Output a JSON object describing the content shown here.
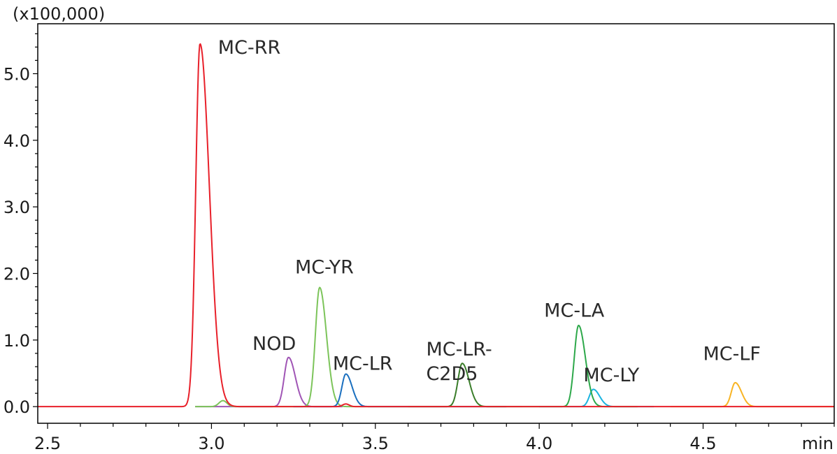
{
  "chart_data": {
    "type": "line",
    "title": "",
    "y_scale_label": "(x100,000)",
    "x_unit_label": "min",
    "xlim": [
      2.47,
      4.9
    ],
    "ylim": [
      -0.25,
      5.75
    ],
    "x_ticks": [
      {
        "value": 2.5,
        "label": "2.5"
      },
      {
        "value": 3.0,
        "label": "3.0"
      },
      {
        "value": 3.5,
        "label": "3.5"
      },
      {
        "value": 4.0,
        "label": "4.0"
      },
      {
        "value": 4.5,
        "label": "4.5"
      }
    ],
    "y_ticks": [
      {
        "value": 0.0,
        "label": "0.0"
      },
      {
        "value": 1.0,
        "label": "1.0"
      },
      {
        "value": 2.0,
        "label": "2.0"
      },
      {
        "value": 3.0,
        "label": "3.0"
      },
      {
        "value": 4.0,
        "label": "4.0"
      },
      {
        "value": 5.0,
        "label": "5.0"
      }
    ],
    "grid": false,
    "series": [
      {
        "name": "MC-RR",
        "color": "#e8202a",
        "x_range": [
          2.47,
          4.9
        ],
        "peaks": [
          {
            "rt": 2.965,
            "height": 5.45,
            "sigma": 0.013,
            "tail": 0.02
          },
          {
            "rt": 3.41,
            "height": 0.04,
            "sigma": 0.01,
            "tail": 0.0
          }
        ]
      },
      {
        "name": "NOD",
        "color": "#a055b5",
        "x_range": [
          2.95,
          3.4
        ],
        "peaks": [
          {
            "rt": 3.235,
            "height": 0.74,
            "sigma": 0.013,
            "tail": 0.01
          }
        ]
      },
      {
        "name": "MC-YR",
        "color": "#7cc45a",
        "x_range": [
          2.95,
          3.6
        ],
        "peaks": [
          {
            "rt": 3.33,
            "height": 1.79,
            "sigma": 0.013,
            "tail": 0.01
          },
          {
            "rt": 3.035,
            "height": 0.09,
            "sigma": 0.012,
            "tail": 0.0
          }
        ]
      },
      {
        "name": "MC-LR",
        "color": "#1a6fbf",
        "x_range": [
          3.25,
          3.9
        ],
        "peaks": [
          {
            "rt": 3.41,
            "height": 0.49,
            "sigma": 0.012,
            "tail": 0.01
          }
        ]
      },
      {
        "name": "MC-LR-C2D5",
        "color": "#3a7d2a",
        "x_range": [
          3.6,
          3.95
        ],
        "peaks": [
          {
            "rt": 3.765,
            "height": 0.65,
            "sigma": 0.013,
            "tail": 0.01
          }
        ]
      },
      {
        "name": "MC-LA",
        "color": "#2da84a",
        "x_range": [
          3.95,
          4.3
        ],
        "peaks": [
          {
            "rt": 4.12,
            "height": 1.22,
            "sigma": 0.013,
            "tail": 0.01
          }
        ]
      },
      {
        "name": "MC-LY",
        "color": "#1cb4e0",
        "x_range": [
          4.0,
          4.35
        ],
        "peaks": [
          {
            "rt": 4.165,
            "height": 0.26,
            "sigma": 0.012,
            "tail": 0.01
          }
        ]
      },
      {
        "name": "MC-LF",
        "color": "#f8b424",
        "x_range": [
          4.4,
          4.9
        ],
        "peaks": [
          {
            "rt": 4.598,
            "height": 0.36,
            "sigma": 0.012,
            "tail": 0.01
          }
        ]
      }
    ],
    "annotations": [
      {
        "lines": [
          "MC-RR"
        ],
        "x": 3.02,
        "y": 5.3
      },
      {
        "lines": [
          "NOD"
        ],
        "x": 3.125,
        "y": 0.85
      },
      {
        "lines": [
          "MC-YR"
        ],
        "x": 3.255,
        "y": 2.0
      },
      {
        "lines": [
          "MC-LR"
        ],
        "x": 3.37,
        "y": 0.55
      },
      {
        "lines": [
          "MC-LR-",
          "C2D5"
        ],
        "x": 3.655,
        "y": 0.77
      },
      {
        "lines": [
          "MC-LA"
        ],
        "x": 4.015,
        "y": 1.35
      },
      {
        "lines": [
          "MC-LY"
        ],
        "x": 4.135,
        "y": 0.38
      },
      {
        "lines": [
          "MC-LF"
        ],
        "x": 4.5,
        "y": 0.7
      }
    ]
  }
}
